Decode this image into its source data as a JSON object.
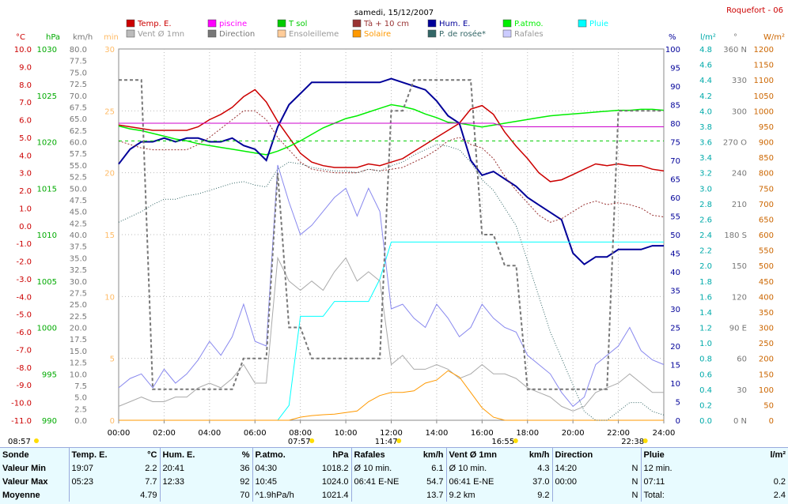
{
  "header": {
    "title": "samedi, 15/12/2007",
    "station": "Roquefort - 06"
  },
  "legend": [
    {
      "label": "Temp. E.",
      "color": "#cc0000"
    },
    {
      "label": "piscine",
      "color": "#ff00ff"
    },
    {
      "label": "T sol",
      "color": "#00cc00"
    },
    {
      "label": "Tà + 10 cm",
      "color": "#993333"
    },
    {
      "label": "Hum. E.",
      "color": "#000099"
    },
    {
      "label": "P.atmo.",
      "color": "#00ee00"
    },
    {
      "label": "Pluie",
      "color": "#00ffff"
    },
    {
      "label": "Vent Ø 1mn",
      "color": "#bbbbbb"
    },
    {
      "label": "Direction",
      "color": "#777777"
    },
    {
      "label": "Ensoleilleme",
      "color": "#ffcc99"
    },
    {
      "label": "Solaire",
      "color": "#ff9900"
    },
    {
      "label": "P. de rosée*",
      "color": "#336666"
    },
    {
      "label": "Rafales",
      "color": "#ccccff"
    }
  ],
  "axis_units": {
    "temp": "°C",
    "press": "hPa",
    "wind": "km/h",
    "min": "min",
    "hum": "%",
    "rain": "l/m²",
    "dir": "°",
    "sol": "W/m²"
  },
  "chart_data": {
    "type": "line",
    "x": [
      "00:00",
      "00:30",
      "01:00",
      "01:30",
      "02:00",
      "02:30",
      "03:00",
      "03:30",
      "04:00",
      "04:30",
      "05:00",
      "05:30",
      "06:00",
      "06:30",
      "07:00",
      "07:30",
      "08:00",
      "08:30",
      "09:00",
      "09:30",
      "10:00",
      "10:30",
      "11:00",
      "11:30",
      "12:00",
      "12:30",
      "13:00",
      "13:30",
      "14:00",
      "14:30",
      "15:00",
      "15:30",
      "16:00",
      "16:30",
      "17:00",
      "17:30",
      "18:00",
      "18:30",
      "19:00",
      "19:30",
      "20:00",
      "20:30",
      "21:00",
      "21:30",
      "22:00",
      "22:30",
      "23:00",
      "23:30",
      "24:00"
    ],
    "xticks": [
      "00:00",
      "02:00",
      "04:00",
      "06:00",
      "08:00",
      "10:00",
      "12:00",
      "14:00",
      "16:00",
      "18:00",
      "20:00",
      "22:00",
      "24:00"
    ],
    "series": [
      {
        "name": "Temp. E.",
        "axis": "temp",
        "values": [
          5.7,
          5.6,
          5.5,
          5.4,
          5.4,
          5.4,
          5.4,
          5.6,
          6.0,
          6.3,
          6.7,
          7.3,
          7.7,
          7.0,
          5.9,
          5.0,
          4.1,
          3.6,
          3.4,
          3.3,
          3.3,
          3.3,
          3.5,
          3.4,
          3.6,
          3.8,
          4.2,
          4.6,
          5.0,
          5.4,
          5.8,
          6.6,
          6.8,
          6.3,
          5.3,
          4.5,
          3.8,
          3.0,
          2.5,
          2.6,
          2.9,
          3.2,
          3.5,
          3.4,
          3.5,
          3.4,
          3.4,
          3.2,
          3.1
        ]
      },
      {
        "name": "P.atmo.",
        "axis": "press",
        "values": [
          1021.7,
          1021.4,
          1021.2,
          1020.9,
          1020.6,
          1020.3,
          1020.1,
          1019.8,
          1019.6,
          1019.4,
          1019.2,
          1019.0,
          1018.8,
          1018.6,
          1019.0,
          1019.5,
          1020.1,
          1020.8,
          1021.5,
          1022.0,
          1022.5,
          1022.8,
          1023.2,
          1023.6,
          1024.0,
          1023.8,
          1023.5,
          1023.0,
          1022.6,
          1022.1,
          1022.0,
          1021.8,
          1021.6,
          1021.8,
          1022.0,
          1022.2,
          1022.4,
          1022.6,
          1022.8,
          1022.9,
          1023.0,
          1023.1,
          1023.2,
          1023.3,
          1023.4,
          1023.4,
          1023.5,
          1023.5,
          1023.4
        ]
      },
      {
        "name": "Hum. E.",
        "axis": "hum",
        "values": [
          69,
          73,
          75,
          75,
          76,
          75,
          76,
          76,
          75,
          75,
          76,
          74,
          73,
          70,
          79,
          85,
          88,
          91,
          91,
          91,
          91,
          91,
          91,
          91,
          92,
          91,
          90,
          89,
          86,
          82,
          80,
          70,
          66,
          67,
          65,
          63,
          60,
          58,
          56,
          54,
          45,
          42,
          44,
          44,
          46,
          46,
          46,
          47,
          47
        ]
      },
      {
        "name": "Pluie",
        "axis": "rain",
        "values": [
          0,
          0,
          0,
          0,
          0,
          0,
          0,
          0,
          0,
          0,
          0,
          0,
          0,
          0,
          0,
          0.2,
          1.4,
          1.4,
          1.4,
          1.6,
          1.6,
          1.6,
          1.6,
          1.9,
          2.4,
          2.4,
          2.4,
          2.4,
          2.4,
          2.4,
          2.4,
          2.4,
          2.4,
          2.4,
          2.4,
          2.4,
          2.4,
          2.4,
          2.4,
          2.4,
          2.4,
          2.4,
          2.4,
          2.4,
          2.4,
          2.4,
          2.4,
          2.4,
          2.4
        ]
      },
      {
        "name": "Rafales",
        "axis": "wind",
        "values": [
          7,
          9,
          10,
          7,
          11,
          8,
          10,
          13,
          17,
          14,
          18,
          25,
          17,
          16,
          55,
          47,
          40,
          42,
          45,
          48,
          50,
          44,
          50,
          45,
          24,
          25,
          22,
          20,
          25,
          22,
          18,
          20,
          25,
          22,
          20,
          19,
          14,
          12,
          10,
          6,
          3,
          5,
          12,
          14,
          16,
          20,
          15,
          13,
          12
        ]
      },
      {
        "name": "Vent Ø 1mn",
        "axis": "wind",
        "values": [
          3,
          4,
          5,
          4,
          4,
          5,
          5,
          7,
          8,
          7,
          9,
          12,
          8,
          8,
          35,
          30,
          28,
          30,
          28,
          32,
          35,
          30,
          32,
          30,
          12,
          14,
          11,
          11,
          12,
          11,
          9,
          10,
          12,
          10,
          10,
          9,
          7,
          6,
          5,
          3,
          2,
          3,
          6,
          7,
          8,
          10,
          8,
          6,
          6
        ]
      },
      {
        "name": "Direction",
        "axis": "dir",
        "values": [
          330,
          330,
          330,
          30,
          30,
          30,
          30,
          30,
          30,
          30,
          30,
          60,
          60,
          60,
          240,
          90,
          90,
          60,
          60,
          60,
          60,
          60,
          60,
          60,
          300,
          300,
          330,
          330,
          330,
          330,
          330,
          330,
          180,
          180,
          150,
          150,
          30,
          30,
          30,
          30,
          30,
          30,
          30,
          30,
          300,
          300,
          300,
          300,
          300
        ]
      },
      {
        "name": "Solaire",
        "axis": "sol",
        "values": [
          0,
          0,
          0,
          0,
          0,
          0,
          0,
          0,
          0,
          0,
          0,
          0,
          0,
          0,
          0,
          0,
          10,
          15,
          18,
          20,
          25,
          30,
          60,
          80,
          90,
          90,
          95,
          120,
          130,
          160,
          140,
          90,
          40,
          10,
          0,
          0,
          0,
          0,
          0,
          0,
          0,
          0,
          0,
          0,
          0,
          0,
          0,
          0,
          0
        ]
      },
      {
        "name": "Tà + 10 cm",
        "axis": "temp",
        "values": [
          4.8,
          4.6,
          4.4,
          4.3,
          4.3,
          4.3,
          4.3,
          4.6,
          5.0,
          5.5,
          6.0,
          6.5,
          6.5,
          6.0,
          5.0,
          4.3,
          3.6,
          3.2,
          3.1,
          3.0,
          3.0,
          3.0,
          3.2,
          3.1,
          3.2,
          3.3,
          3.6,
          3.9,
          4.3,
          4.8,
          5.0,
          4.6,
          4.4,
          3.8,
          2.8,
          2.0,
          1.3,
          0.6,
          0.2,
          0.4,
          0.8,
          1.2,
          1.4,
          1.2,
          1.3,
          1.2,
          1.0,
          0.6,
          0.5
        ]
      },
      {
        "name": "P. de rosée*",
        "axis": "temp",
        "values": [
          0.2,
          0.5,
          0.8,
          1.2,
          1.5,
          1.5,
          1.7,
          1.8,
          2.0,
          2.2,
          2.4,
          2.5,
          2.3,
          2.2,
          3.2,
          3.6,
          3.5,
          3.3,
          3.2,
          3.1,
          3.1,
          3.0,
          3.2,
          3.1,
          3.4,
          3.6,
          4.0,
          4.3,
          4.6,
          4.5,
          4.3,
          3.6,
          2.6,
          2.0,
          1.0,
          0.0,
          -2.0,
          -4.0,
          -6.0,
          -7.5,
          -9.0,
          -10.5,
          -11.0,
          -11.0,
          -10.5,
          -10.0,
          -10.0,
          -10.5,
          -10.7
        ]
      },
      {
        "name": "piscine",
        "axis": "temp",
        "values": [
          5.8,
          5.8,
          5.8,
          5.8,
          5.8,
          5.8,
          5.8,
          5.8,
          5.8,
          5.8,
          5.8,
          5.8,
          5.8,
          5.8,
          5.8,
          5.8,
          5.8,
          5.8,
          5.8,
          5.8,
          5.8,
          5.8,
          5.8,
          5.8,
          5.8,
          5.8,
          5.8,
          5.8,
          5.8,
          5.8,
          5.8,
          5.8,
          5.8,
          5.8,
          5.6,
          5.6,
          5.6,
          5.6,
          5.6,
          5.6,
          5.6,
          5.6,
          5.6,
          5.6,
          5.6,
          5.6,
          5.6,
          5.6,
          5.6
        ]
      },
      {
        "name": "T sol",
        "axis": "temp",
        "values": [
          4.8,
          4.8,
          4.8,
          4.8,
          4.8,
          4.8,
          4.8,
          4.8,
          4.8,
          4.8,
          4.8,
          4.8,
          4.8,
          4.8,
          4.8,
          4.8,
          4.8,
          4.8,
          4.8,
          4.8,
          4.8,
          4.8,
          4.8,
          4.8,
          4.8,
          4.8,
          4.8,
          4.8,
          4.8,
          4.8,
          4.8,
          4.8,
          4.8,
          4.8,
          4.8,
          4.8,
          4.8,
          4.8,
          4.8,
          4.8,
          4.8,
          4.8,
          4.8,
          4.8,
          4.8,
          4.8,
          4.8,
          4.8,
          4.8
        ]
      }
    ],
    "axes": {
      "temp": {
        "labels": [
          "10.0",
          "9.0",
          "8.0",
          "7.0",
          "6.0",
          "5.0",
          "4.0",
          "3.0",
          "2.0",
          "1.0",
          "0.0",
          "-1.0",
          "-2.0",
          "-3.0",
          "-4.0",
          "-5.0",
          "-6.0",
          "-7.0",
          "-8.0",
          "-9.0",
          "-10.0",
          "-11.0"
        ],
        "color": "#cc0000",
        "ylim": [
          -11,
          10
        ]
      },
      "press": {
        "labels": [
          "1030",
          "1025",
          "1020",
          "1015",
          "1010",
          "1005",
          "1000",
          "995",
          "990"
        ],
        "color": "#00aa00",
        "ylim": [
          990,
          1030
        ]
      },
      "wind": {
        "labels": [
          "80.0",
          "77.5",
          "75.0",
          "72.5",
          "70.0",
          "67.5",
          "65.0",
          "62.5",
          "60.0",
          "57.5",
          "55.0",
          "52.5",
          "50.0",
          "47.5",
          "45.0",
          "42.5",
          "40.0",
          "37.5",
          "35.0",
          "32.5",
          "30.0",
          "27.5",
          "25.0",
          "22.5",
          "20.0",
          "17.5",
          "15.0",
          "12.5",
          "10.0",
          "7.5",
          "5.0",
          "2.5",
          "0.0"
        ],
        "color": "#777777",
        "ylim": [
          0,
          80
        ]
      },
      "min": {
        "labels": [
          "30",
          "25",
          "20",
          "15",
          "10",
          "5",
          "0"
        ],
        "color": "#ffbb66",
        "ylim": [
          0,
          30
        ]
      },
      "hum": {
        "labels": [
          "100",
          "95",
          "90",
          "85",
          "80",
          "75",
          "70",
          "65",
          "60",
          "55",
          "50",
          "45",
          "40",
          "35",
          "30",
          "25",
          "20",
          "15",
          "10",
          "5",
          "0"
        ],
        "color": "#000099",
        "ylim": [
          0,
          100
        ]
      },
      "rain": {
        "labels": [
          "4.8",
          "4.6",
          "4.4",
          "4.2",
          "4.0",
          "3.8",
          "3.6",
          "3.4",
          "3.2",
          "3.0",
          "2.8",
          "2.6",
          "2.4",
          "2.2",
          "2.0",
          "1.8",
          "1.6",
          "1.4",
          "1.2",
          "1.0",
          "0.8",
          "0.6",
          "0.4",
          "0.2",
          "0.0"
        ],
        "color": "#00aaaa",
        "ylim": [
          0,
          5
        ]
      },
      "dir": {
        "labels": [
          "360 N",
          "330",
          "300",
          "270 O",
          "240",
          "210",
          "180 S",
          "150",
          "120",
          "90 E",
          "60",
          "30",
          "0 N"
        ],
        "color": "#777777",
        "ylim": [
          0,
          360
        ]
      },
      "sol": {
        "labels": [
          "1200",
          "1150",
          "1100",
          "1050",
          "1000",
          "950",
          "900",
          "850",
          "800",
          "750",
          "700",
          "650",
          "600",
          "550",
          "500",
          "450",
          "400",
          "350",
          "300",
          "250",
          "200",
          "150",
          "100",
          "50",
          "0"
        ],
        "color": "#cc6600",
        "ylim": [
          0,
          1200
        ]
      }
    }
  },
  "sun_markers": [
    {
      "label": "08:57",
      "time": 0
    },
    {
      "label": "07:57",
      "time": 7.95
    },
    {
      "label": "11:47",
      "time": 11.78
    },
    {
      "label": "16:55",
      "time": 16.92
    },
    {
      "label": "22:38",
      "time": 22.63
    }
  ],
  "stats": {
    "headers": [
      "Sonde",
      "Temp. E.",
      "°C",
      "Hum. E.",
      "%",
      "P.atmo.",
      "hPa",
      "Rafales",
      "km/h",
      "Vent Ø 1mn",
      "km/h",
      "Direction",
      "",
      "Pluie",
      "l/m²"
    ],
    "rows": [
      [
        "Valeur Min",
        "19:07",
        "2.2",
        "20:41",
        "36",
        "04:30",
        "1018.2",
        "Ø 10 min.",
        "6.1",
        "Ø 10 min.",
        "4.3",
        "14:20",
        "N",
        "12 min.",
        ""
      ],
      [
        "Valeur Max",
        "05:23",
        "7.7",
        "12:33",
        "92",
        "10:45",
        "1024.0",
        "06:41  E-NE",
        "54.7",
        "06:41  E-NE",
        "37.0",
        "00:00",
        "N",
        "07:11",
        "0.2"
      ],
      [
        "Moyenne",
        "",
        "4.79",
        "",
        "70",
        "^1.9hPa/h",
        "1021.4",
        "",
        "13.7",
        "9.2 km",
        "9.2",
        "",
        "N",
        "Total:",
        "2.4"
      ]
    ]
  }
}
